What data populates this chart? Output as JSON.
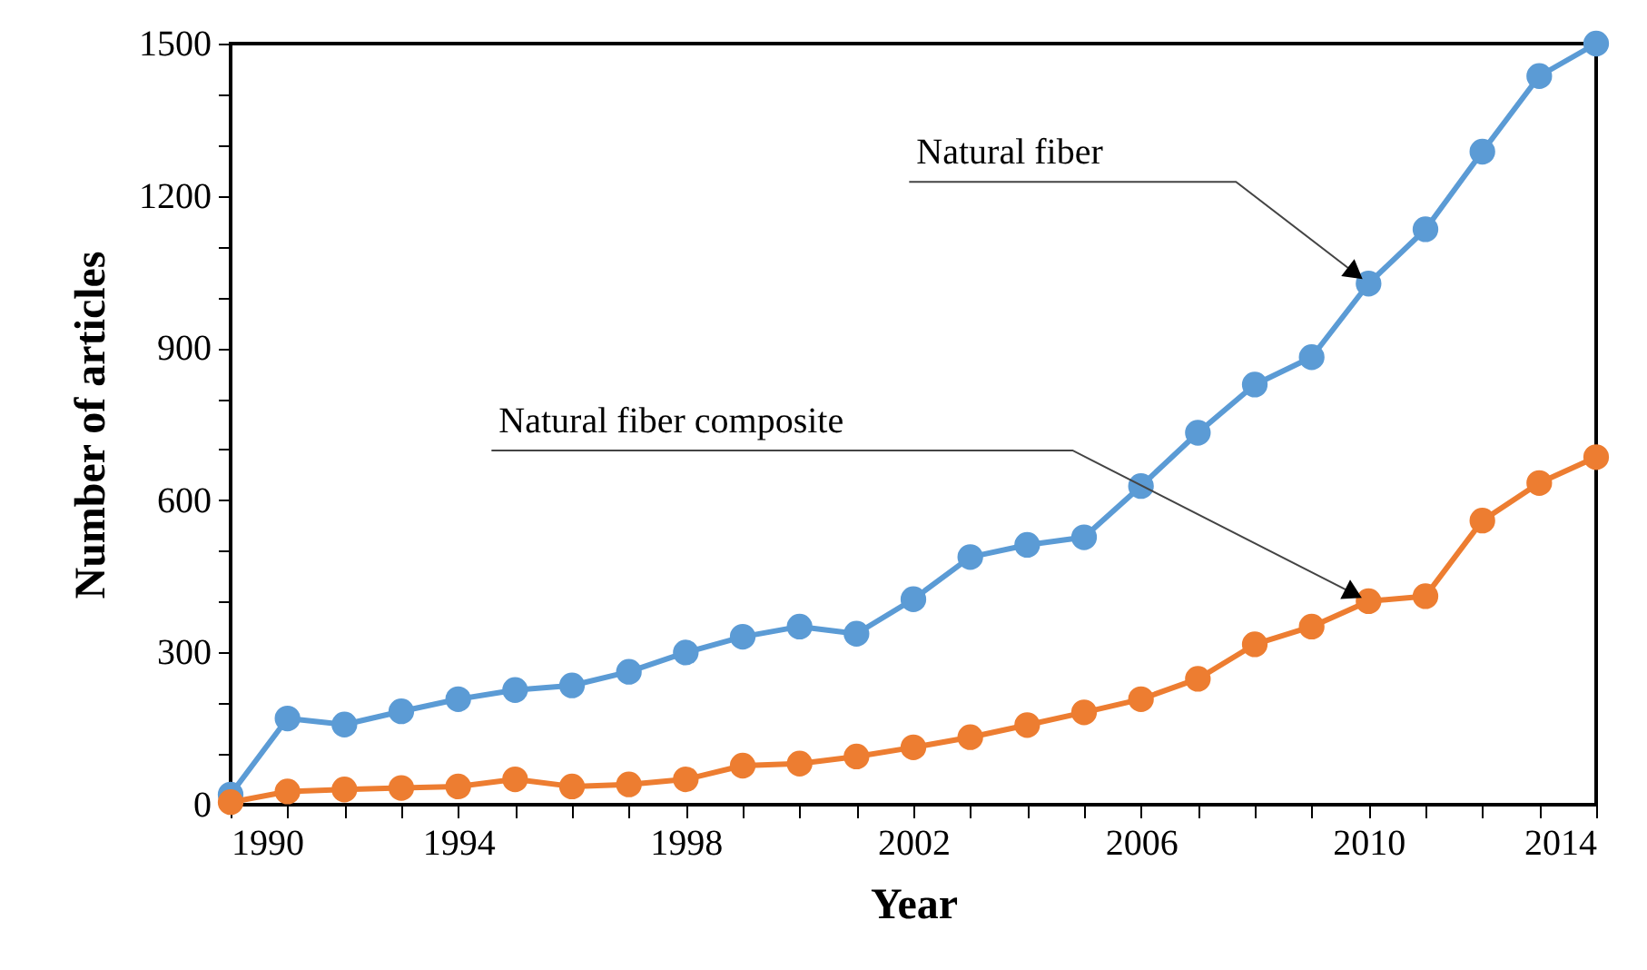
{
  "chart_data": {
    "type": "line",
    "xlabel": "Year",
    "ylabel": "Number of articles",
    "x": [
      1990,
      1991,
      1992,
      1993,
      1994,
      1995,
      1996,
      1997,
      1998,
      1999,
      2000,
      2001,
      2002,
      2003,
      2004,
      2005,
      2006,
      2007,
      2008,
      2009,
      2010,
      2011,
      2012,
      2013,
      2014
    ],
    "series": [
      {
        "color": "#5b9bd5",
        "values": [
          20,
          170,
          158,
          184,
          208,
          226,
          235,
          262,
          300,
          331,
          351,
          337,
          405,
          488,
          512,
          527,
          628,
          733,
          828,
          882,
          1027,
          1134,
          1287,
          1436,
          1500
        ]
      },
      {
        "color": "#ed7d31",
        "values": [
          5,
          26,
          30,
          33,
          36,
          50,
          36,
          40,
          50,
          77,
          81,
          95,
          113,
          133,
          157,
          182,
          208,
          248,
          316,
          351,
          401,
          411,
          560,
          634,
          685
        ]
      }
    ],
    "xlim": [
      1990,
      2014
    ],
    "xticks": [
      1990,
      {
        "value": 1991,
        "label": null
      },
      {
        "value": 1992,
        "label": null
      },
      {
        "value": 1993,
        "label": null
      },
      1994,
      {
        "value": 1995,
        "label": null
      },
      {
        "value": 1996,
        "label": null
      },
      {
        "value": 1997,
        "label": null
      },
      1998,
      {
        "value": 1999,
        "label": null
      },
      {
        "value": 2000,
        "label": null
      },
      {
        "value": 2001,
        "label": null
      },
      2002,
      {
        "value": 2003,
        "label": null
      },
      {
        "value": 2004,
        "label": null
      },
      {
        "value": 2005,
        "label": null
      },
      2006,
      {
        "value": 2007,
        "label": null
      },
      {
        "value": 2008,
        "label": null
      },
      {
        "value": 2009,
        "label": null
      },
      2010,
      {
        "value": 2011,
        "label": null
      },
      {
        "value": 2012,
        "label": null
      },
      {
        "value": 2013,
        "label": null
      },
      2014
    ],
    "ylim": [
      0,
      1500
    ],
    "yticks": [
      0,
      {
        "value": 100,
        "label": null
      },
      {
        "value": 200,
        "label": null
      },
      300,
      {
        "value": 400,
        "label": null
      },
      {
        "value": 500,
        "label": null
      },
      600,
      {
        "value": 700,
        "label": null
      },
      {
        "value": 800,
        "label": null
      },
      900,
      {
        "value": 1000,
        "label": null
      },
      {
        "value": 1100,
        "label": null
      },
      1200,
      {
        "value": 1300,
        "label": null
      },
      {
        "value": 1400,
        "label": null
      },
      1500
    ],
    "annotations": [
      {
        "text": "Natural fiber",
        "x": 2010,
        "y": 1027
      },
      {
        "text": "Natural fiber composite",
        "x": 2010,
        "y": 401
      }
    ],
    "marker": "circle",
    "line_style": "solid",
    "grid": false
  }
}
